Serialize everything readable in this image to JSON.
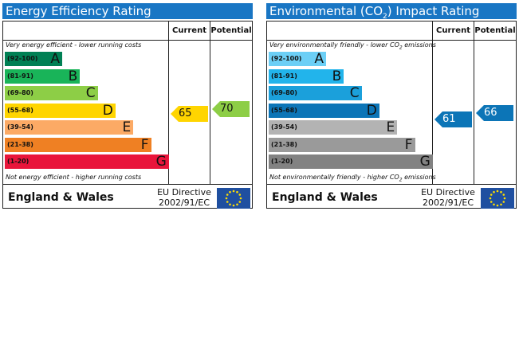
{
  "chart_data": [
    {
      "type": "bar",
      "title": "Energy Efficiency Rating",
      "columns": [
        "Current",
        "Potential"
      ],
      "top_note": "Very energy efficient - lower running costs",
      "bottom_note": "Not energy efficient - higher running costs",
      "bands": [
        {
          "range": "(92-100)",
          "letter": "A",
          "color": "#008054"
        },
        {
          "range": "(81-91)",
          "letter": "B",
          "color": "#19b459"
        },
        {
          "range": "(69-80)",
          "letter": "C",
          "color": "#8dce46"
        },
        {
          "range": "(55-68)",
          "letter": "D",
          "color": "#ffd500"
        },
        {
          "range": "(39-54)",
          "letter": "E",
          "color": "#fcaa65"
        },
        {
          "range": "(21-38)",
          "letter": "F",
          "color": "#ef8023"
        },
        {
          "range": "(1-20)",
          "letter": "G",
          "color": "#e9153b"
        }
      ],
      "current": {
        "value": 65,
        "band": "D",
        "color": "#ffd500"
      },
      "potential": {
        "value": 70,
        "band": "C",
        "color": "#8dce46"
      },
      "footer": {
        "country": "England & Wales",
        "directive_line1": "EU Directive",
        "directive_line2": "2002/91/EC"
      }
    },
    {
      "type": "bar",
      "title_pre": "Environmental (CO",
      "title_sub": "2",
      "title_post": ") Impact Rating",
      "columns": [
        "Current",
        "Potential"
      ],
      "top_note_pre": "Very environmentally friendly - lower CO",
      "top_note_sub": "2",
      "top_note_post": " emissions",
      "bottom_note_pre": "Not environmentally friendly - higher CO",
      "bottom_note_sub": "2",
      "bottom_note_post": " emissions",
      "bands": [
        {
          "range": "(92-100)",
          "letter": "A",
          "color": "#6ccff6"
        },
        {
          "range": "(81-91)",
          "letter": "B",
          "color": "#22b4eb"
        },
        {
          "range": "(69-80)",
          "letter": "C",
          "color": "#1ba0db"
        },
        {
          "range": "(55-68)",
          "letter": "D",
          "color": "#0c75b7"
        },
        {
          "range": "(39-54)",
          "letter": "E",
          "color": "#b3b3b3"
        },
        {
          "range": "(21-38)",
          "letter": "F",
          "color": "#9a9a9a"
        },
        {
          "range": "(1-20)",
          "letter": "G",
          "color": "#828282"
        }
      ],
      "current": {
        "value": 61,
        "band": "D",
        "color": "#0c75b7"
      },
      "potential": {
        "value": 66,
        "band": "D",
        "color": "#0c75b7"
      },
      "footer": {
        "country": "England & Wales",
        "directive_line1": "EU Directive",
        "directive_line2": "2002/91/EC"
      }
    }
  ]
}
